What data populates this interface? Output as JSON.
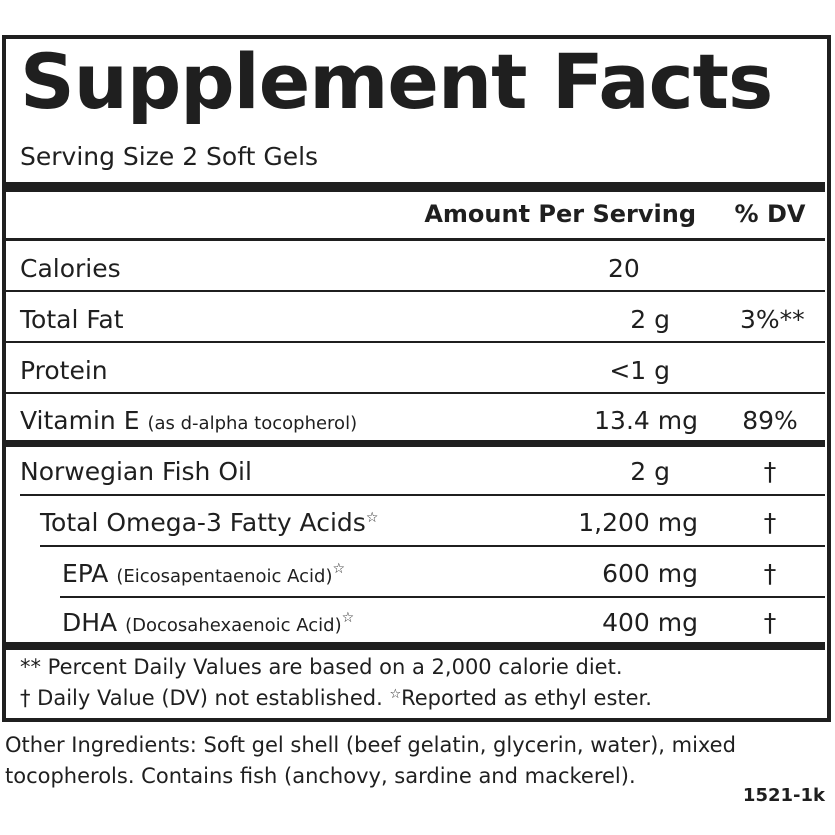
{
  "title": "Supplement Facts",
  "serving_size": "Serving Size 2 Soft Gels",
  "header": {
    "amount": "Amount Per Serving",
    "dv": "% DV"
  },
  "rows": [
    {
      "name": "Calories",
      "qualifier": "",
      "mark": "",
      "amount": "20",
      "dv": ""
    },
    {
      "name": "Total Fat",
      "qualifier": "",
      "mark": "",
      "amount": "2 g",
      "dv": "3%**"
    },
    {
      "name": "Protein",
      "qualifier": "",
      "mark": "",
      "amount": "<1 g",
      "dv": ""
    },
    {
      "name": "Vitamin E",
      "qualifier": "(as d-alpha tocopherol)",
      "mark": "",
      "amount": "13.4 mg",
      "dv": "89%"
    },
    {
      "name": "Norwegian Fish Oil",
      "qualifier": "",
      "mark": "",
      "amount": "2 g",
      "dv": "†"
    },
    {
      "name": "Total Omega-3 Fatty Acids",
      "qualifier": "",
      "mark": "☆",
      "amount": "1,200 mg",
      "dv": "†"
    },
    {
      "name": "EPA",
      "qualifier": "(Eicosapentaenoic Acid)",
      "mark": "☆",
      "amount": "600 mg",
      "dv": "†"
    },
    {
      "name": "DHA",
      "qualifier": "(Docosahexaenoic Acid)",
      "mark": "☆",
      "amount": "400 mg",
      "dv": "†"
    }
  ],
  "footnotes": {
    "line1": "** Percent Daily Values are based on a 2,000 calorie diet.",
    "line2_a": "† Daily Value (DV) not established.",
    "line2_star": "☆",
    "line2_b": "Reported as ethyl ester."
  },
  "other_ingredients": "Other Ingredients: Soft gel shell (beef gelatin, glycerin, water), mixed tocopherols. Contains fish (anchovy, sardine and mackerel).",
  "code": "1521-1k"
}
